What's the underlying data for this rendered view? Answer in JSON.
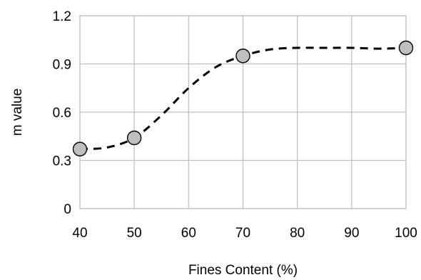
{
  "chart_data": {
    "type": "scatter",
    "title": "",
    "xlabel": "Fines Content (%)",
    "ylabel": "m value",
    "xlim": [
      40,
      100
    ],
    "ylim": [
      0,
      1.2
    ],
    "x_ticks": [
      40,
      50,
      60,
      70,
      80,
      90,
      100
    ],
    "x_tick_labels": [
      "40",
      "50",
      "60",
      "70",
      "80",
      "90",
      "100"
    ],
    "y_ticks": [
      0,
      0.3,
      0.6,
      0.9,
      1.2
    ],
    "y_tick_labels": [
      "0",
      "0.3",
      "0.6",
      "0.9",
      "1.2"
    ],
    "grid": true,
    "legend": "none",
    "series": [
      {
        "x": [
          40,
          50,
          70,
          100
        ],
        "y": [
          0.37,
          0.44,
          0.95,
          1.0
        ],
        "marker": "circle",
        "marker_fill": "#bfbfbf",
        "marker_edge": "#000000"
      }
    ],
    "trend_line": {
      "style": "dashed",
      "color": "#000000",
      "x": [
        40,
        45,
        50,
        55,
        60,
        65,
        70,
        75,
        80,
        85,
        90,
        95,
        100
      ],
      "y": [
        0.37,
        0.38,
        0.44,
        0.58,
        0.75,
        0.88,
        0.95,
        0.99,
        1.0,
        1.0,
        1.0,
        0.995,
        1.0
      ]
    }
  }
}
